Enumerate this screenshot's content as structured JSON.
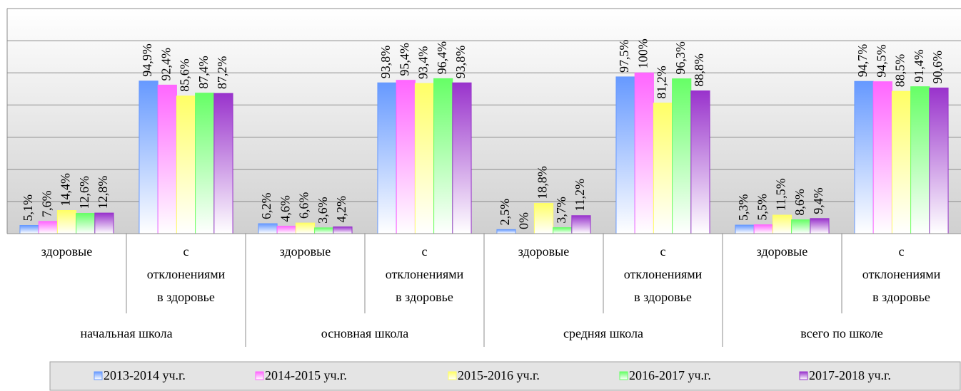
{
  "chart_data": {
    "type": "bar",
    "groups": [
      "начальная школа",
      "основная школа",
      "средняя школа",
      "всего по школе"
    ],
    "categories": [
      [
        "здоровые"
      ],
      [
        "с",
        "отклонениями",
        "в здоровье"
      ],
      [
        "здоровые"
      ],
      [
        "с",
        "отклонениями",
        "в здоровье"
      ],
      [
        "здоровые"
      ],
      [
        "с",
        "отклонениями",
        "в здоровье"
      ],
      [
        "здоровые"
      ],
      [
        "с",
        "отклонениями",
        "в здоровье"
      ]
    ],
    "series": [
      {
        "name": "2013-2014 уч.г.",
        "color": "#6699ff",
        "values": [
          5.1,
          94.9,
          6.2,
          93.8,
          2.5,
          97.5,
          5.3,
          94.7
        ],
        "value_labels": [
          "5,1%",
          "94,9%",
          "6,2%",
          "93,8%",
          "2,5%",
          "97,5%",
          "5,3%",
          "94,7%"
        ]
      },
      {
        "name": "2014-2015 уч.г.",
        "color": "#ff66ff",
        "values": [
          7.6,
          92.4,
          4.6,
          95.4,
          0,
          100,
          5.5,
          94.5
        ],
        "value_labels": [
          "7,6%",
          "92,4%",
          "4,6%",
          "95,4%",
          "0%",
          "100%",
          "5,5%",
          "94,5%"
        ]
      },
      {
        "name": "2015-2016 уч.г.",
        "color": "#ffff66",
        "values": [
          14.4,
          85.6,
          6.6,
          93.4,
          18.8,
          81.2,
          11.5,
          88.5
        ],
        "value_labels": [
          "14,4%",
          "85,6%",
          "6,6%",
          "93,4%",
          "18,8%",
          "81,2%",
          "11,5%",
          "88,5%"
        ]
      },
      {
        "name": "2016-2017 уч.г.",
        "color": "#66ff66",
        "values": [
          12.6,
          87.4,
          3.6,
          96.4,
          3.7,
          96.3,
          8.6,
          91.4
        ],
        "value_labels": [
          "12,6%",
          "87,4%",
          "3,6%",
          "96,4%",
          "3,7%",
          "96,3%",
          "8,6%",
          "91,4%"
        ]
      },
      {
        "name": "2017-2018 уч.г.",
        "color": "#9933cc",
        "values": [
          12.8,
          87.2,
          4.2,
          93.8,
          11.2,
          88.8,
          9.4,
          90.6
        ],
        "value_labels": [
          "12,8%",
          "87,2%",
          "4,2%",
          "93,8%",
          "11,2%",
          "88,8%",
          "9,4%",
          "90,6%"
        ]
      }
    ],
    "ylim": [
      0,
      140
    ],
    "yticks": [
      0,
      20,
      40,
      60,
      80,
      100,
      120,
      140
    ],
    "grid": true,
    "legend": "bottom"
  }
}
